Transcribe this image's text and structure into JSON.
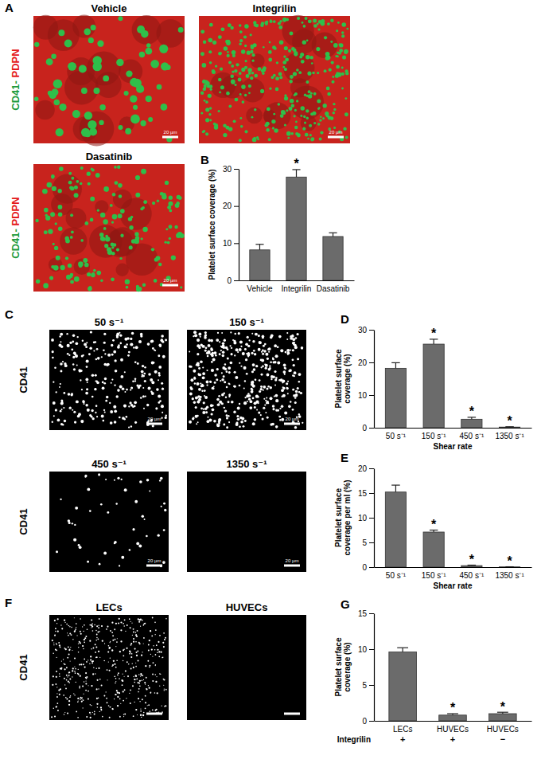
{
  "panels": [
    "A",
    "B",
    "C",
    "D",
    "E",
    "F",
    "G"
  ],
  "image_groups": [
    {
      "row_label": [
        {
          "text": "CD41-",
          "color": "#1e9b3c"
        },
        {
          "text": " PDPN",
          "color": "#e41a1c"
        }
      ],
      "tiles": [
        {
          "title": "Vehicle",
          "scale_bar": "20 µm"
        },
        {
          "title": "Integrilin",
          "scale_bar": "20 µm"
        },
        {
          "title": "Dasatinib",
          "scale_bar": "20 µm"
        }
      ]
    },
    {
      "row_label": [
        {
          "text": "CD41",
          "color": "#000000"
        }
      ],
      "tiles": [
        {
          "title": "50 s⁻¹",
          "scale_bar": "20 µm"
        },
        {
          "title": "150 s⁻¹",
          "scale_bar": "20 µm"
        },
        {
          "title": "450 s⁻¹",
          "scale_bar": "20 µm"
        },
        {
          "title": "1350 s⁻¹",
          "scale_bar": "20 µm"
        }
      ]
    },
    {
      "row_label": [
        {
          "text": "CD41",
          "color": "#000000"
        }
      ],
      "tiles": [
        {
          "title": "LECs"
        },
        {
          "title": "HUVECs"
        }
      ]
    }
  ],
  "chart_data": [
    {
      "type": "bar",
      "ylabel": [
        "Platelet surface coverage (%)"
      ],
      "categories": [
        "Vehicle",
        "Integrilin",
        "Dasatinib"
      ],
      "values": [
        8.2,
        27.8,
        11.8
      ],
      "errors": [
        1.5,
        2.0,
        1.0
      ],
      "annotations": [
        null,
        "*",
        null
      ],
      "color": "#6b6b6b",
      "ylim": [
        0,
        30
      ],
      "yticks": [
        0,
        10,
        20,
        30
      ]
    },
    {
      "type": "bar",
      "ylabel": [
        "Platelet surface",
        "coverage (%)"
      ],
      "xlabel": "Shear rate",
      "categories": [
        "50 s⁻¹",
        "150 s⁻¹",
        "450 s⁻¹",
        "1350 s⁻¹"
      ],
      "values": [
        18.2,
        25.6,
        2.6,
        0.2
      ],
      "errors": [
        1.7,
        1.5,
        0.6,
        0.1
      ],
      "annotations": [
        null,
        "*",
        "*",
        "*"
      ],
      "color": "#6b6b6b",
      "ylim": [
        0,
        30
      ],
      "yticks": [
        0,
        10,
        20,
        30
      ]
    },
    {
      "type": "bar",
      "ylabel": [
        "Platelet surface",
        "coverage per ml (%)"
      ],
      "xlabel": "Shear rate",
      "categories": [
        "50 s⁻¹",
        "150 s⁻¹",
        "450 s⁻¹",
        "1350 s⁻¹"
      ],
      "values": [
        15.2,
        7.1,
        0.3,
        0.05
      ],
      "errors": [
        1.4,
        0.4,
        0.1,
        0.02
      ],
      "annotations": [
        null,
        "*",
        "*",
        "*"
      ],
      "color": "#6b6b6b",
      "ylim": [
        0,
        20
      ],
      "yticks": [
        0,
        5,
        10,
        15,
        20
      ]
    },
    {
      "type": "bar",
      "ylabel": [
        "Platelet surface",
        "coverage (%)"
      ],
      "categories": [
        "LECs",
        "HUVECs",
        "HUVECs"
      ],
      "sub_label": "Integrilin",
      "sub_categories": [
        "+",
        "+",
        "−"
      ],
      "values": [
        9.6,
        0.8,
        1.0
      ],
      "errors": [
        0.6,
        0.2,
        0.2
      ],
      "annotations": [
        null,
        "*",
        "*"
      ],
      "color": "#6b6b6b",
      "ylim": [
        0,
        15
      ],
      "yticks": [
        0,
        5,
        10,
        15
      ]
    }
  ]
}
